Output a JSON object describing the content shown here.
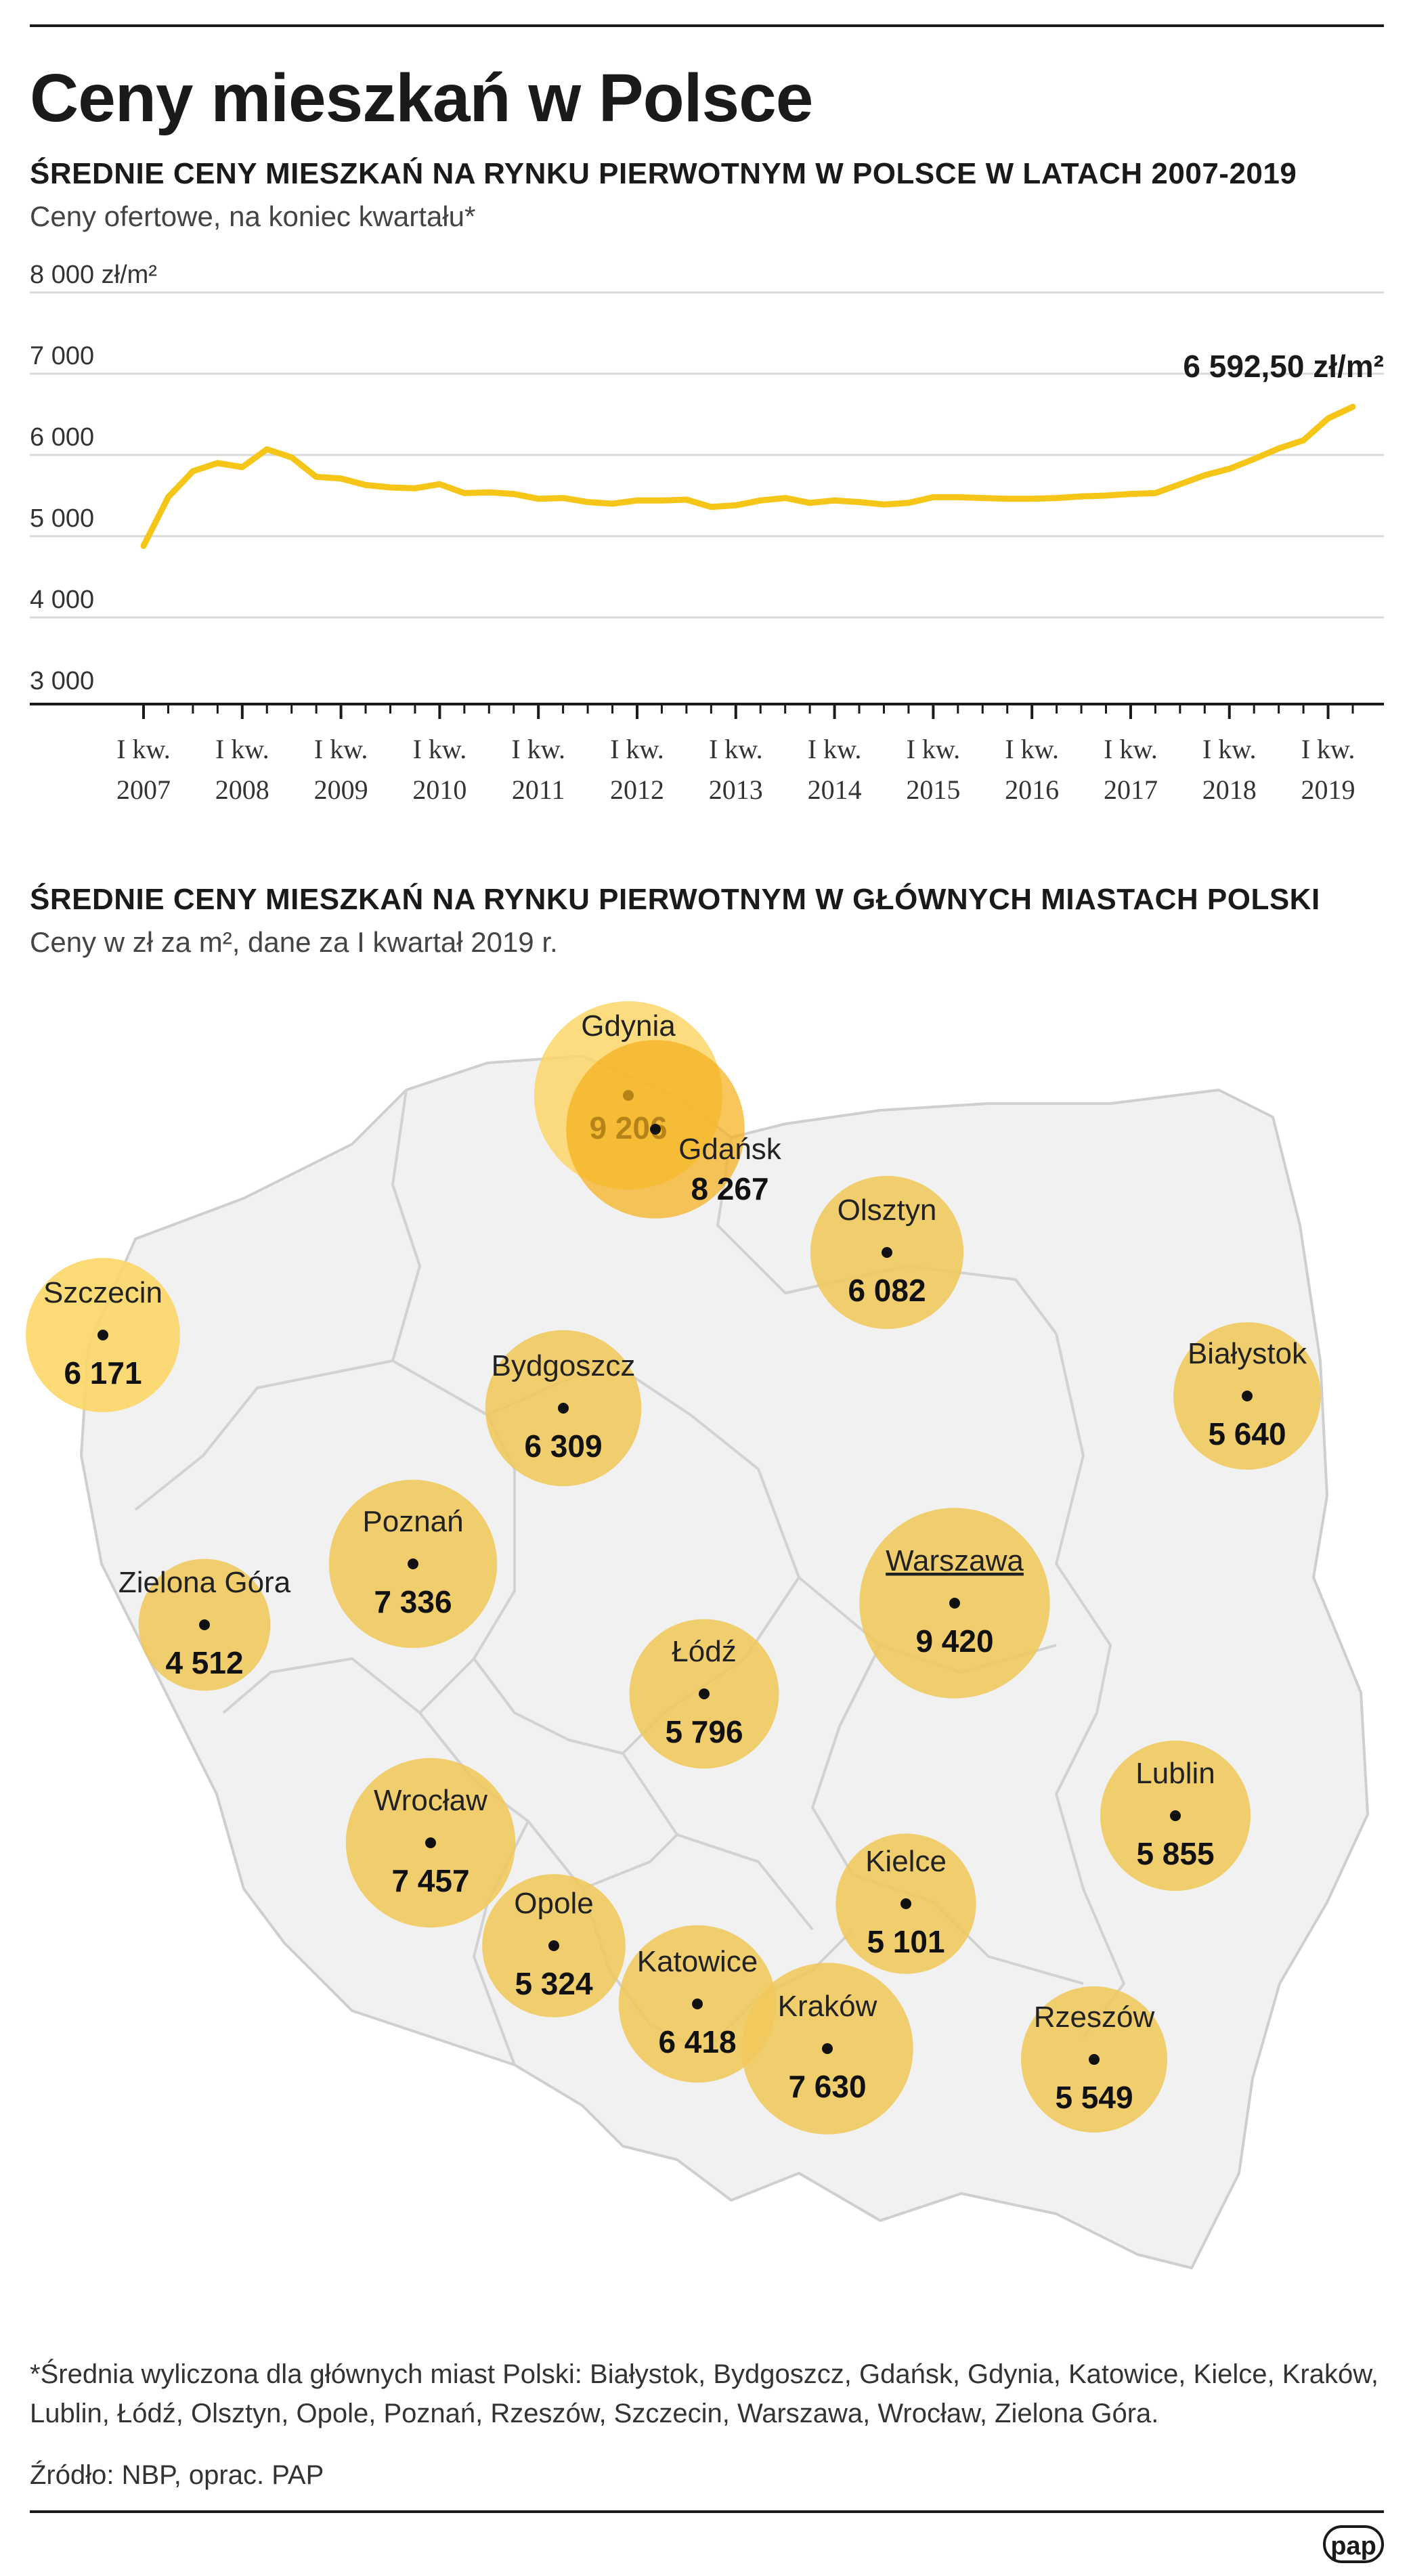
{
  "header": {
    "title": "Ceny mieszkań w Polsce"
  },
  "section1": {
    "title": "ŚREDNIE CENY MIESZKAŃ NA RYNKU PIERWOTNYM W POLSCE W LATACH 2007-2019",
    "subtitle": "Ceny ofertowe, na koniec kwartału*"
  },
  "section2": {
    "title": "ŚREDNIE CENY MIESZKAŃ NA RYNKU PIERWOTNYM W GŁÓWNYCH MIASTACH POLSKI",
    "subtitle": "Ceny w zł za m², dane za I kwartał 2019 r."
  },
  "footnote": "*Średnia wyliczona dla głównych miast Polski: Białystok, Bydgoszcz, Gdańsk, Gdynia, Katowice, Kielce, Kraków, Lublin, Łódź, Olsztyn, Opole, Poznań, Rzeszów, Szczecin, Warszawa, Wrocław, Zielona Góra.",
  "source": "Źródło: NBP, oprac. PAP",
  "logo": "pap",
  "chart_data": [
    {
      "type": "line",
      "ylim": [
        3000,
        8000
      ],
      "y_ticks": [
        "3 000",
        "4 000",
        "5 000",
        "6 000",
        "7 000",
        "8 000 zł/m²"
      ],
      "y_tick_values": [
        3000,
        4000,
        5000,
        6000,
        7000,
        8000
      ],
      "x_tick_labels": [
        {
          "top": "I kw.",
          "bottom": "2007"
        },
        {
          "top": "I kw.",
          "bottom": "2008"
        },
        {
          "top": "I kw.",
          "bottom": "2009"
        },
        {
          "top": "I kw.",
          "bottom": "2010"
        },
        {
          "top": "I kw.",
          "bottom": "2011"
        },
        {
          "top": "I kw.",
          "bottom": "2012"
        },
        {
          "top": "I kw.",
          "bottom": "2013"
        },
        {
          "top": "I kw.",
          "bottom": "2014"
        },
        {
          "top": "I kw.",
          "bottom": "2015"
        },
        {
          "top": "I kw.",
          "bottom": "2016"
        },
        {
          "top": "I kw.",
          "bottom": "2017"
        },
        {
          "top": "I kw.",
          "bottom": "2018"
        },
        {
          "top": "I kw.",
          "bottom": "2019"
        }
      ],
      "end_label": "6 592,50 zł/m²",
      "grid": true,
      "color": "#f5c518",
      "values": [
        4880,
        5480,
        5800,
        5900,
        5850,
        6070,
        5970,
        5730,
        5710,
        5630,
        5600,
        5590,
        5640,
        5530,
        5540,
        5520,
        5460,
        5470,
        5420,
        5400,
        5440,
        5440,
        5450,
        5360,
        5380,
        5440,
        5470,
        5410,
        5440,
        5420,
        5390,
        5410,
        5480,
        5480,
        5470,
        5460,
        5460,
        5470,
        5490,
        5500,
        5520,
        5530,
        5640,
        5750,
        5830,
        5950,
        6080,
        6180,
        6450,
        6592.5
      ]
    },
    {
      "type": "bubble",
      "unit": "zł/m²",
      "cities": [
        {
          "name": "Gdynia",
          "value": "9 206",
          "underline": false
        },
        {
          "name": "Gdańsk",
          "value": "8 267",
          "underline": false
        },
        {
          "name": "Olsztyn",
          "value": "6 082",
          "underline": false
        },
        {
          "name": "Szczecin",
          "value": "6 171",
          "underline": false
        },
        {
          "name": "Białystok",
          "value": "5 640",
          "underline": false
        },
        {
          "name": "Bydgoszcz",
          "value": "6 309",
          "underline": false
        },
        {
          "name": "Poznań",
          "value": "7 336",
          "underline": false
        },
        {
          "name": "Warszawa",
          "value": "9 420",
          "underline": true
        },
        {
          "name": "Zielona Góra",
          "value": "4 512",
          "underline": false
        },
        {
          "name": "Łódź",
          "value": "5 796",
          "underline": false
        },
        {
          "name": "Lublin",
          "value": "5 855",
          "underline": false
        },
        {
          "name": "Wrocław",
          "value": "7 457",
          "underline": false
        },
        {
          "name": "Kielce",
          "value": "5 101",
          "underline": false
        },
        {
          "name": "Opole",
          "value": "5 324",
          "underline": false
        },
        {
          "name": "Katowice",
          "value": "6 418",
          "underline": false
        },
        {
          "name": "Kraków",
          "value": "7 630",
          "underline": false
        },
        {
          "name": "Rzeszów",
          "value": "5 549",
          "underline": false
        }
      ]
    }
  ]
}
